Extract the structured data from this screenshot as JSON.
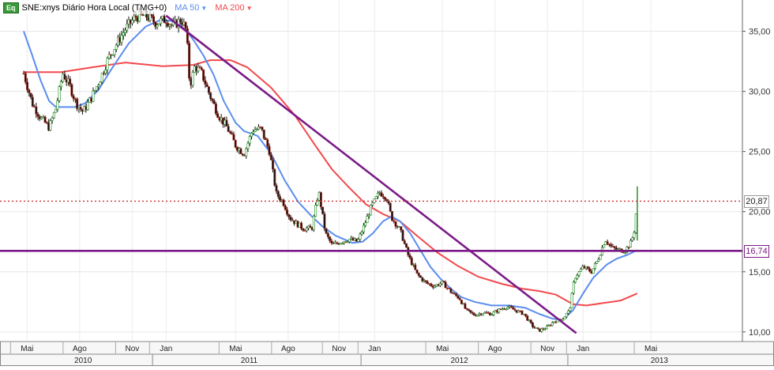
{
  "legend": {
    "badge": "Eq",
    "symbol_text": "SNE:xnys Diário Hora Local (TMG+0)",
    "ma50_label": "MA 50",
    "ma200_label": "MA 200",
    "ma50_color": "#5b8def",
    "ma200_color": "#f2494c",
    "trendline_color": "#7b1a87"
  },
  "price_labels": {
    "last_price": "20,87",
    "support_level": "16,74"
  },
  "chart_data": {
    "type": "line",
    "title": "",
    "y_axis": {
      "ticks": [
        "10,00",
        "15,00",
        "20,00",
        "25,00",
        "30,00",
        "35,00"
      ],
      "ylim": [
        9.2,
        37.6
      ],
      "position": "right"
    },
    "x_axis": {
      "month_ticks": [
        {
          "label": "Mai",
          "t": 0.02
        },
        {
          "label": "Ago",
          "t": 0.33
        },
        {
          "label": "Nov",
          "t": 0.64
        },
        {
          "label": "Jan",
          "t": 0.84
        },
        {
          "label": "Mai",
          "t": 1.25
        },
        {
          "label": "Ago",
          "t": 1.56
        },
        {
          "label": "Nov",
          "t": 1.86
        },
        {
          "label": "Jan",
          "t": 2.07
        },
        {
          "label": "Mai",
          "t": 2.47
        },
        {
          "label": "Ago",
          "t": 2.78
        },
        {
          "label": "Nov",
          "t": 3.09
        },
        {
          "label": "Jan",
          "t": 3.3
        },
        {
          "label": "Mai",
          "t": 3.7
        }
      ],
      "year_labels": [
        {
          "label": "2010",
          "t": 0.35
        },
        {
          "label": "2011",
          "t": 1.33
        },
        {
          "label": "2012",
          "t": 2.57
        },
        {
          "label": "2013",
          "t": 3.75
        }
      ],
      "year_boundaries": [
        0.76,
        1.99,
        3.21
      ],
      "xlim": [
        -0.14,
        4.24
      ]
    },
    "series": [
      {
        "name": "SNE",
        "style": "candles",
        "points": [
          [
            0.0,
            31.5
          ],
          [
            0.05,
            29.0
          ],
          [
            0.1,
            27.8
          ],
          [
            0.15,
            27.0
          ],
          [
            0.19,
            28.6
          ],
          [
            0.23,
            31.5
          ],
          [
            0.27,
            30.5
          ],
          [
            0.31,
            29.0
          ],
          [
            0.35,
            28.3
          ],
          [
            0.4,
            29.5
          ],
          [
            0.45,
            31.0
          ],
          [
            0.5,
            32.8
          ],
          [
            0.55,
            34.0
          ],
          [
            0.6,
            35.2
          ],
          [
            0.66,
            36.2
          ],
          [
            0.72,
            36.3
          ],
          [
            0.78,
            35.7
          ],
          [
            0.84,
            36.0
          ],
          [
            0.88,
            35.4
          ],
          [
            0.93,
            36.0
          ],
          [
            0.96,
            35.0
          ],
          [
            0.98,
            30.4
          ],
          [
            1.01,
            32.1
          ],
          [
            1.05,
            31.5
          ],
          [
            1.1,
            29.6
          ],
          [
            1.15,
            28.0
          ],
          [
            1.2,
            27.0
          ],
          [
            1.25,
            25.5
          ],
          [
            1.3,
            24.8
          ],
          [
            1.35,
            26.8
          ],
          [
            1.4,
            26.9
          ],
          [
            1.45,
            25.0
          ],
          [
            1.49,
            21.5
          ],
          [
            1.53,
            20.8
          ],
          [
            1.57,
            19.5
          ],
          [
            1.61,
            19.0
          ],
          [
            1.65,
            18.6
          ],
          [
            1.7,
            18.6
          ],
          [
            1.74,
            21.7
          ],
          [
            1.78,
            18.2
          ],
          [
            1.82,
            17.2
          ],
          [
            1.87,
            17.5
          ],
          [
            1.92,
            17.7
          ],
          [
            1.97,
            17.5
          ],
          [
            2.01,
            18.9
          ],
          [
            2.05,
            20.4
          ],
          [
            2.1,
            21.6
          ],
          [
            2.14,
            21.2
          ],
          [
            2.17,
            19.5
          ],
          [
            2.22,
            18.5
          ],
          [
            2.27,
            16.3
          ],
          [
            2.32,
            14.8
          ],
          [
            2.37,
            14.1
          ],
          [
            2.42,
            13.8
          ],
          [
            2.47,
            14.1
          ],
          [
            2.53,
            13.2
          ],
          [
            2.57,
            12.8
          ],
          [
            2.61,
            11.8
          ],
          [
            2.66,
            11.4
          ],
          [
            2.71,
            11.6
          ],
          [
            2.76,
            11.5
          ],
          [
            2.8,
            11.8
          ],
          [
            2.85,
            12.1
          ],
          [
            2.9,
            11.8
          ],
          [
            2.95,
            11.5
          ],
          [
            3.0,
            10.5
          ],
          [
            3.04,
            10.1
          ],
          [
            3.09,
            10.4
          ],
          [
            3.13,
            10.9
          ],
          [
            3.18,
            11.1
          ],
          [
            3.22,
            11.8
          ],
          [
            3.25,
            14.5
          ],
          [
            3.3,
            15.4
          ],
          [
            3.35,
            15.0
          ],
          [
            3.39,
            16.1
          ],
          [
            3.43,
            17.7
          ],
          [
            3.47,
            17.0
          ],
          [
            3.51,
            16.8
          ],
          [
            3.55,
            16.8
          ],
          [
            3.58,
            17.4
          ],
          [
            3.6,
            18.2
          ],
          [
            3.62,
            20.9
          ]
        ]
      },
      {
        "name": "MA 50",
        "points": [
          [
            0.0,
            35.0
          ],
          [
            0.05,
            33.0
          ],
          [
            0.1,
            30.9
          ],
          [
            0.15,
            29.2
          ],
          [
            0.19,
            28.7
          ],
          [
            0.3,
            28.7
          ],
          [
            0.36,
            29.0
          ],
          [
            0.44,
            30.1
          ],
          [
            0.52,
            31.9
          ],
          [
            0.62,
            34.0
          ],
          [
            0.72,
            35.4
          ],
          [
            0.8,
            35.9
          ],
          [
            0.86,
            35.9
          ],
          [
            0.91,
            35.7
          ],
          [
            0.96,
            35.0
          ],
          [
            1.0,
            34.3
          ],
          [
            1.06,
            33.0
          ],
          [
            1.12,
            31.4
          ],
          [
            1.18,
            29.2
          ],
          [
            1.25,
            27.4
          ],
          [
            1.3,
            26.7
          ],
          [
            1.38,
            26.3
          ],
          [
            1.46,
            24.8
          ],
          [
            1.54,
            22.6
          ],
          [
            1.62,
            20.8
          ],
          [
            1.7,
            19.6
          ],
          [
            1.76,
            18.8
          ],
          [
            1.84,
            18.0
          ],
          [
            1.94,
            17.4
          ],
          [
            2.0,
            17.5
          ],
          [
            2.06,
            18.2
          ],
          [
            2.12,
            19.2
          ],
          [
            2.17,
            19.6
          ],
          [
            2.22,
            19.2
          ],
          [
            2.28,
            18.2
          ],
          [
            2.34,
            16.8
          ],
          [
            2.4,
            15.4
          ],
          [
            2.46,
            14.4
          ],
          [
            2.52,
            13.6
          ],
          [
            2.58,
            12.9
          ],
          [
            2.66,
            12.5
          ],
          [
            2.76,
            12.2
          ],
          [
            2.86,
            12.2
          ],
          [
            2.96,
            12.0
          ],
          [
            3.04,
            11.5
          ],
          [
            3.12,
            11.1
          ],
          [
            3.18,
            11.0
          ],
          [
            3.24,
            11.8
          ],
          [
            3.3,
            13.2
          ],
          [
            3.36,
            14.5
          ],
          [
            3.44,
            15.6
          ],
          [
            3.5,
            16.1
          ],
          [
            3.56,
            16.4
          ],
          [
            3.62,
            16.8
          ]
        ]
      },
      {
        "name": "MA 200",
        "points": [
          [
            0.0,
            31.6
          ],
          [
            0.1,
            31.6
          ],
          [
            0.22,
            31.6
          ],
          [
            0.4,
            32.0
          ],
          [
            0.6,
            32.4
          ],
          [
            0.82,
            32.1
          ],
          [
            1.0,
            32.2
          ],
          [
            1.1,
            32.6
          ],
          [
            1.22,
            32.6
          ],
          [
            1.32,
            32.0
          ],
          [
            1.46,
            30.3
          ],
          [
            1.6,
            28.0
          ],
          [
            1.72,
            25.5
          ],
          [
            1.82,
            23.5
          ],
          [
            1.92,
            22.0
          ],
          [
            2.02,
            20.6
          ],
          [
            2.12,
            19.8
          ],
          [
            2.22,
            19.2
          ],
          [
            2.32,
            18.0
          ],
          [
            2.44,
            16.6
          ],
          [
            2.56,
            15.5
          ],
          [
            2.68,
            14.6
          ],
          [
            2.82,
            14.0
          ],
          [
            2.94,
            13.6
          ],
          [
            3.04,
            13.4
          ],
          [
            3.14,
            13.1
          ],
          [
            3.24,
            12.3
          ],
          [
            3.32,
            12.2
          ],
          [
            3.42,
            12.4
          ],
          [
            3.52,
            12.6
          ],
          [
            3.62,
            13.2
          ]
        ]
      }
    ],
    "trendlines": [
      {
        "name": "diagonal-resistance",
        "from": [
          0.84,
          36.3
        ],
        "to": [
          3.26,
          9.9
        ]
      },
      {
        "name": "horizontal-support",
        "from": [
          -0.14,
          16.74
        ],
        "to": [
          4.24,
          16.74
        ]
      }
    ],
    "reference_lines": [
      {
        "name": "last-price",
        "value": 20.87,
        "style": "dotted",
        "color": "#cc3333"
      }
    ],
    "grid": true,
    "legend_position": "top-left"
  }
}
